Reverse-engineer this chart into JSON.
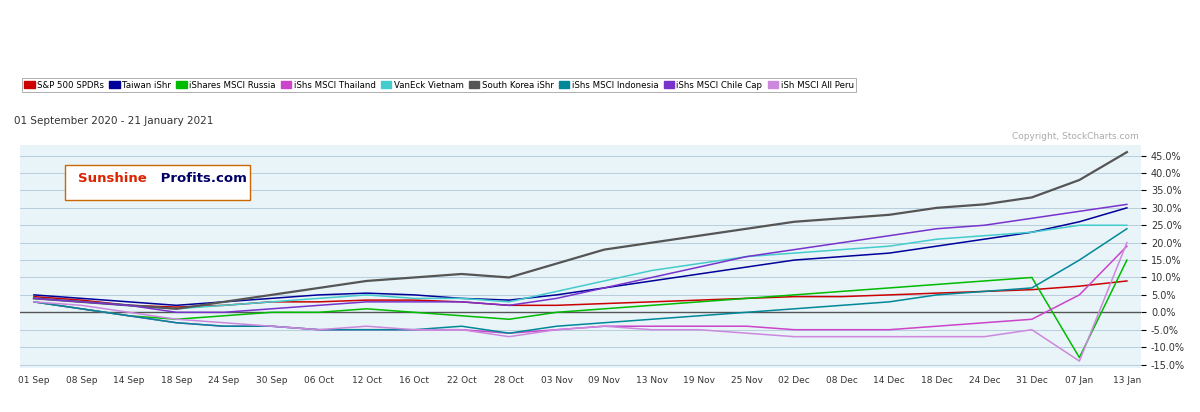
{
  "title_date": "01 September 2020 - 21 January 2021",
  "copyright": "Copyright, StockCharts.com",
  "yticks": [
    -15.0,
    -10.0,
    -5.0,
    0.0,
    5.0,
    10.0,
    15.0,
    20.0,
    25.0,
    30.0,
    35.0,
    40.0,
    45.0
  ],
  "xtick_labels": [
    "01 Sep",
    "08 Sep",
    "14 Sep",
    "18 Sep",
    "24 Sep",
    "30 Sep",
    "06 Oct",
    "12 Oct",
    "16 Oct",
    "22 Oct",
    "28 Oct",
    "03 Nov",
    "09 Nov",
    "13 Nov",
    "19 Nov",
    "25 Nov",
    "02 Dec",
    "08 Dec",
    "14 Dec",
    "18 Dec",
    "24 Dec",
    "31 Dec",
    "07 Jan",
    "13 Jan"
  ],
  "background_color": "#e8f4f8",
  "series": {
    "S&P 500 SPDRs": {
      "color": "#cc0000",
      "data": [
        4.5,
        3.5,
        2,
        1.5,
        2,
        3,
        3,
        3.5,
        3.5,
        3,
        2,
        2,
        2.5,
        3,
        3.5,
        4,
        4.5,
        4.5,
        5,
        5.5,
        6,
        6.5,
        7.5,
        9
      ]
    },
    "Taiwan iShr": {
      "color": "#000099",
      "data": [
        5,
        4,
        3,
        2,
        3,
        4,
        5,
        5.5,
        5,
        4,
        3.5,
        5,
        7,
        9,
        11,
        13,
        15,
        16,
        17,
        19,
        21,
        23,
        26,
        30
      ]
    },
    "iShares MSCI Russia": {
      "color": "#00bb00",
      "data": [
        3,
        1,
        -1,
        -2,
        -1,
        0,
        0,
        1,
        0,
        -1,
        -2,
        0,
        1,
        2,
        3,
        4,
        5,
        6,
        7,
        8,
        9,
        10,
        -13,
        15
      ]
    },
    "iShs MSCI Thailand": {
      "color": "#cc44cc",
      "data": [
        3,
        1,
        -1,
        -3,
        -4,
        -4,
        -5,
        -5,
        -5,
        -5,
        -6,
        -5,
        -4,
        -4,
        -4,
        -4,
        -5,
        -5,
        -5,
        -4,
        -3,
        -2,
        5,
        19
      ]
    },
    "VanEck Vietnam": {
      "color": "#44cccc",
      "data": [
        4,
        3,
        2,
        1,
        2,
        3,
        4,
        5,
        4,
        4,
        3,
        6,
        9,
        12,
        14,
        16,
        17,
        18,
        19,
        21,
        22,
        23,
        25,
        25
      ]
    },
    "South Korea iShr": {
      "color": "#555555",
      "data": [
        4,
        3,
        2,
        1,
        3,
        5,
        7,
        9,
        10,
        11,
        10,
        14,
        18,
        20,
        22,
        24,
        26,
        27,
        28,
        30,
        31,
        33,
        38,
        46
      ]
    },
    "iShs MSCI Indonesia": {
      "color": "#008899",
      "data": [
        3,
        1,
        -1,
        -3,
        -4,
        -4,
        -5,
        -5,
        -5,
        -4,
        -6,
        -4,
        -3,
        -2,
        -1,
        0,
        1,
        2,
        3,
        5,
        6,
        7,
        15,
        24
      ]
    },
    "iShs MSCI Chile Cap": {
      "color": "#7733cc",
      "data": [
        4,
        3,
        2,
        0,
        0,
        1,
        2,
        3,
        3,
        3,
        2,
        4,
        7,
        10,
        13,
        16,
        18,
        20,
        22,
        24,
        25,
        27,
        29,
        31
      ]
    },
    "iSh MSCI All Peru": {
      "color": "#cc88dd",
      "data": [
        3,
        2,
        0,
        -2,
        -3,
        -4,
        -5,
        -4,
        -5,
        -5,
        -7,
        -5,
        -4,
        -5,
        -5,
        -6,
        -7,
        -7,
        -7,
        -7,
        -7,
        -5,
        -14,
        20
      ]
    }
  }
}
